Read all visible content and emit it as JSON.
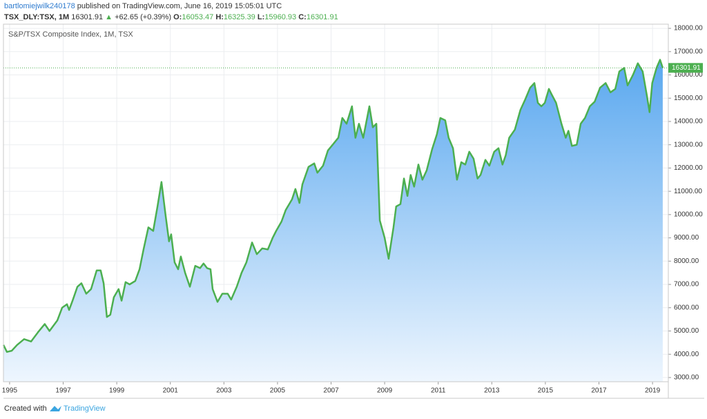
{
  "header": {
    "author": "bartlomiejwilk240178",
    "published": "published on TradingView.com, June 16, 2019 15:05:01 UTC",
    "symbol": "TSX_DLY:TSX, 1M",
    "last": "16301.91",
    "arrow": "▲",
    "change": "+62.65 (+0.39%)",
    "open_label": "O:",
    "open": "16053.47",
    "high_label": "H:",
    "high": "16325.39",
    "low_label": "L:",
    "low": "15960.93",
    "close_label": "C:",
    "close": "16301.91"
  },
  "footer": {
    "created": "Created with",
    "brand": "TradingView"
  },
  "chart_data": {
    "type": "area",
    "title": "S&P/TSX Composite Index, 1M, TSX",
    "color": "#4caf50",
    "fill_top": "#5aa8ef",
    "fill_bottom": "#eef6fe",
    "price_line": 16301.91,
    "x": [
      1994.77,
      1994.9,
      1995.08,
      1995.28,
      1995.54,
      1995.8,
      1996.06,
      1996.31,
      1996.49,
      1996.78,
      1996.96,
      1997.14,
      1997.22,
      1997.35,
      1997.53,
      1997.68,
      1997.86,
      1998.04,
      1998.25,
      1998.4,
      1998.51,
      1998.63,
      1998.76,
      1998.89,
      1999.07,
      1999.18,
      1999.33,
      1999.48,
      1999.69,
      1999.85,
      2000.0,
      2000.18,
      2000.36,
      2000.52,
      2000.67,
      2000.82,
      2000.95,
      2001.03,
      2001.16,
      2001.29,
      2001.39,
      2001.55,
      2001.73,
      2001.93,
      2002.11,
      2002.24,
      2002.37,
      2002.5,
      2002.58,
      2002.76,
      2002.94,
      2003.14,
      2003.27,
      2003.48,
      2003.66,
      2003.84,
      2004.05,
      2004.23,
      2004.43,
      2004.64,
      2004.82,
      2004.95,
      2005.15,
      2005.31,
      2005.54,
      2005.67,
      2005.82,
      2005.93,
      2006.16,
      2006.37,
      2006.49,
      2006.7,
      2006.88,
      2007.06,
      2007.27,
      2007.42,
      2007.58,
      2007.78,
      2007.91,
      2008.04,
      2008.2,
      2008.43,
      2008.56,
      2008.69,
      2008.82,
      2009.0,
      2009.15,
      2009.33,
      2009.43,
      2009.59,
      2009.72,
      2009.85,
      2009.97,
      2010.1,
      2010.26,
      2010.41,
      2010.57,
      2010.77,
      2010.95,
      2011.08,
      2011.26,
      2011.39,
      2011.55,
      2011.7,
      2011.86,
      2012.01,
      2012.16,
      2012.32,
      2012.47,
      2012.58,
      2012.76,
      2012.91,
      2013.09,
      2013.25,
      2013.4,
      2013.52,
      2013.65,
      2013.86,
      2014.07,
      2014.25,
      2014.43,
      2014.59,
      2014.72,
      2014.85,
      2014.98,
      2015.13,
      2015.24,
      2015.4,
      2015.6,
      2015.76,
      2015.86,
      2015.99,
      2016.17,
      2016.32,
      2016.48,
      2016.66,
      2016.84,
      2017.04,
      2017.25,
      2017.43,
      2017.61,
      2017.76,
      2017.94,
      2018.07,
      2018.27,
      2018.45,
      2018.63,
      2018.79,
      2018.89,
      2018.99,
      2019.15,
      2019.28,
      2019.38
    ],
    "values": [
      4400,
      4100,
      4150,
      4400,
      4650,
      4550,
      4950,
      5300,
      5000,
      5450,
      6000,
      6150,
      5900,
      6300,
      6900,
      7050,
      6600,
      6800,
      7600,
      7600,
      7050,
      5600,
      5700,
      6450,
      6800,
      6300,
      7100,
      7000,
      7150,
      7650,
      8500,
      9450,
      9300,
      10350,
      11400,
      10000,
      8850,
      9150,
      7950,
      7650,
      8200,
      7500,
      6900,
      7800,
      7700,
      7900,
      7700,
      7650,
      6800,
      6250,
      6600,
      6600,
      6350,
      6900,
      7500,
      7950,
      8800,
      8300,
      8550,
      8500,
      9000,
      9300,
      9700,
      10200,
      10650,
      11100,
      10500,
      11300,
      12050,
      12200,
      11800,
      12100,
      12750,
      13000,
      13300,
      14150,
      13900,
      14650,
      13300,
      13900,
      13300,
      14650,
      13750,
      13900,
      9750,
      9000,
      8100,
      9450,
      10350,
      10450,
      11550,
      10800,
      11700,
      11200,
      12150,
      11500,
      11900,
      12800,
      13450,
      14150,
      14050,
      13300,
      12850,
      11500,
      12250,
      12150,
      12700,
      12400,
      11550,
      11700,
      12350,
      12100,
      12700,
      12850,
      12150,
      12550,
      13300,
      13650,
      14500,
      14950,
      15450,
      15650,
      14800,
      14650,
      14800,
      15400,
      15150,
      14800,
      13900,
      13300,
      13600,
      12950,
      13000,
      13900,
      14150,
      14650,
      14850,
      15450,
      15650,
      15250,
      15400,
      16150,
      16300,
      15550,
      16000,
      16500,
      16150,
      15100,
      14400,
      15650,
      16300,
      16650,
      16300
    ],
    "xlim": [
      1994.77,
      2019.59
    ],
    "ylim": [
      2820,
      18180
    ],
    "xticks": [
      1995,
      1997,
      1999,
      2001,
      2003,
      2005,
      2007,
      2009,
      2011,
      2013,
      2015,
      2017,
      2019
    ],
    "yticks": [
      {
        "value": 3000,
        "label": "3000.00"
      },
      {
        "value": 4000,
        "label": "4000.00"
      },
      {
        "value": 5000,
        "label": "5000.00"
      },
      {
        "value": 6000,
        "label": "6000.00"
      },
      {
        "value": 7000,
        "label": "7000.00"
      },
      {
        "value": 8000,
        "label": "8000.00"
      },
      {
        "value": 9000,
        "label": "9000.00"
      },
      {
        "value": 10000,
        "label": "10000.00"
      },
      {
        "value": 11000,
        "label": "11000.00"
      },
      {
        "value": 12000,
        "label": "12000.00"
      },
      {
        "value": 13000,
        "label": "13000.00"
      },
      {
        "value": 14000,
        "label": "14000.00"
      },
      {
        "value": 15000,
        "label": "15000.00"
      },
      {
        "value": 16000,
        "label": "16000.00"
      },
      {
        "value": 17000,
        "label": "17000.00"
      },
      {
        "value": 18000,
        "label": "18000.00"
      }
    ],
    "grid": true
  }
}
